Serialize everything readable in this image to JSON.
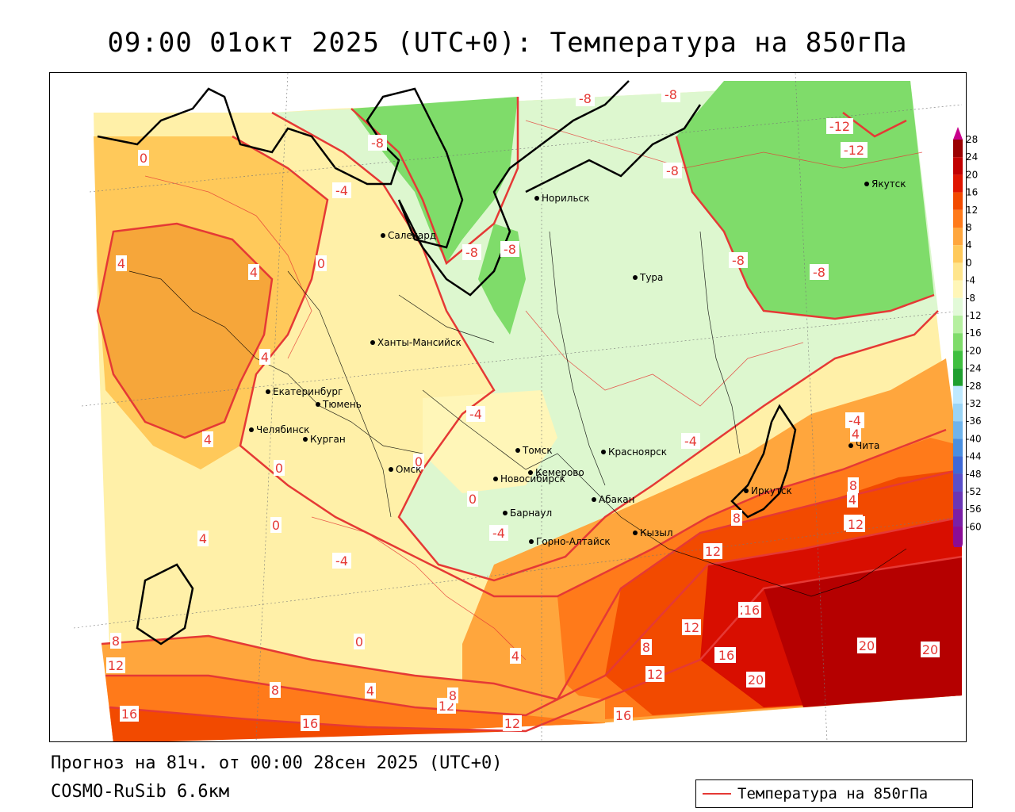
{
  "title": "09:00 01окт 2025 (UTC+0): Температура на 850гПа",
  "footer": {
    "forecast": "Прогноз на 81ч. от 00:00 28сен 2025 (UTC+0)",
    "model": "COSMO-RuSib 6.6км"
  },
  "legend": {
    "label": "Температура на 850гПа",
    "color": "#e53935"
  },
  "colors": {
    "contour": "#e53935",
    "frame": "#000000"
  },
  "scale": {
    "ticks": [
      "28",
      "24",
      "20",
      "16",
      "12",
      "8",
      "4",
      "0",
      "-4",
      "-8",
      "-12",
      "-16",
      "-20",
      "-24",
      "-28",
      "-32",
      "-36",
      "-40",
      "-44",
      "-48",
      "-52",
      "-56",
      "-60"
    ],
    "colors": [
      "#c8008c",
      "#9b0000",
      "#c20000",
      "#e01500",
      "#f24a00",
      "#ff7a1a",
      "#ffa63d",
      "#ffc95a",
      "#ffe58c",
      "#fff6b8",
      "#e2fad8",
      "#b6f0a0",
      "#7fdc6a",
      "#3fbf3f",
      "#1f9f2f",
      "#bfe9ff",
      "#9ad4f5",
      "#6fb4ec",
      "#4a8fe0",
      "#3f69d6",
      "#5a4fc9",
      "#6a36b5",
      "#7a1fa6",
      "#8a0c96"
    ]
  },
  "contour_labels": [
    "-8",
    "-8",
    "-12",
    "-12",
    "-8",
    "-4",
    "-8",
    "-8",
    "-8",
    "-8",
    "-8",
    "0",
    "4",
    "4",
    "4",
    "4",
    "0",
    "0",
    "0",
    "-4",
    "-4",
    "0",
    "-4",
    "-4",
    "-4",
    "4",
    "0",
    "4",
    "8",
    "8",
    "12",
    "16",
    "4",
    "12",
    "0",
    "16",
    "20",
    "20",
    "20",
    "12",
    "12",
    "16",
    "20",
    "8",
    "8",
    "16",
    "12",
    "8",
    "12",
    "4",
    "4",
    "8",
    "16",
    "16",
    "12",
    "16"
  ],
  "cities": [
    "Норильск",
    "Якутск",
    "Салехард",
    "Тура",
    "Ханты-Мансийск",
    "Екатеринбург",
    "Тюмень",
    "Челябинск",
    "Курган",
    "Томск",
    "Красноярск",
    "Омск",
    "Новосибирск",
    "Кемерово",
    "Абакан",
    "Барнаул",
    "Иркутск",
    "Чита",
    "Горно-Алтайск",
    "Кызыл"
  ]
}
